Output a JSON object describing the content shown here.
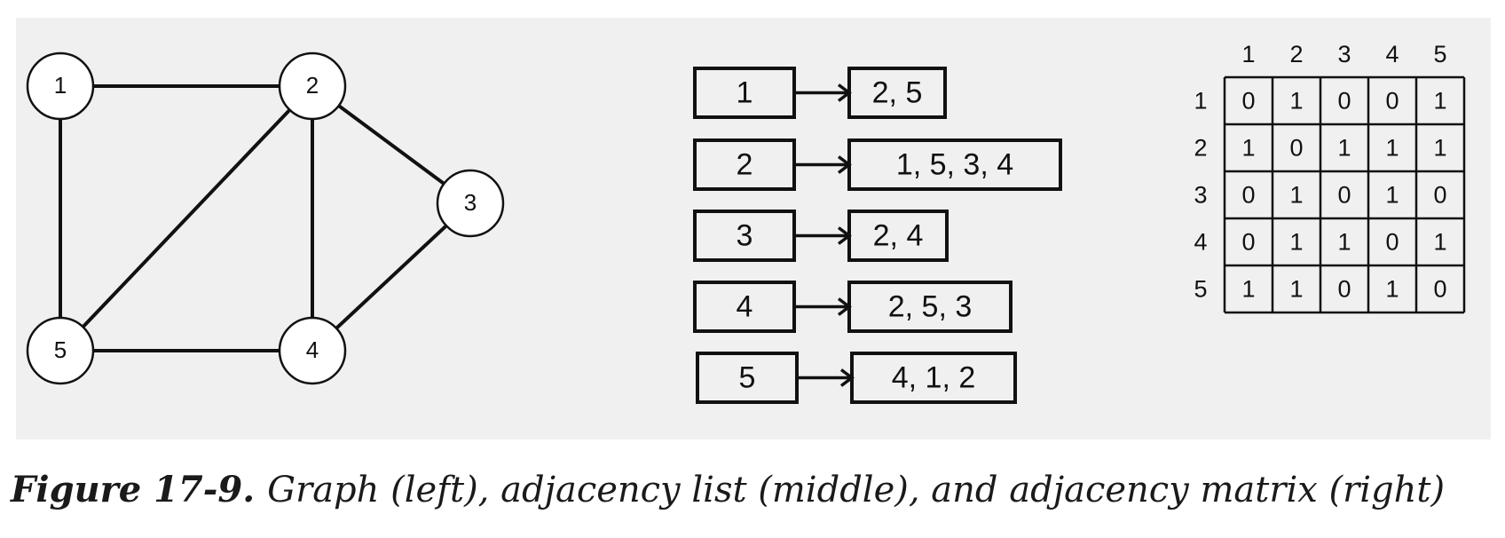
{
  "graph": {
    "nodes": [
      {
        "id": "1",
        "label": "1"
      },
      {
        "id": "2",
        "label": "2"
      },
      {
        "id": "3",
        "label": "3"
      },
      {
        "id": "4",
        "label": "4"
      },
      {
        "id": "5",
        "label": "5"
      }
    ],
    "edges": [
      [
        "1",
        "2"
      ],
      [
        "1",
        "5"
      ],
      [
        "2",
        "5"
      ],
      [
        "2",
        "4"
      ],
      [
        "2",
        "3"
      ],
      [
        "3",
        "4"
      ],
      [
        "4",
        "5"
      ]
    ]
  },
  "adjacency_list": [
    {
      "vertex": "1",
      "neighbors": "2, 5"
    },
    {
      "vertex": "2",
      "neighbors": "1, 5, 3, 4"
    },
    {
      "vertex": "3",
      "neighbors": "2, 4"
    },
    {
      "vertex": "4",
      "neighbors": "2, 5, 3"
    },
    {
      "vertex": "5",
      "neighbors": "4, 1, 2"
    }
  ],
  "adjacency_matrix": {
    "column_headers": [
      "1",
      "2",
      "3",
      "4",
      "5"
    ],
    "row_headers": [
      "1",
      "2",
      "3",
      "4",
      "5"
    ],
    "rows": [
      [
        "0",
        "1",
        "0",
        "0",
        "1"
      ],
      [
        "1",
        "0",
        "1",
        "1",
        "1"
      ],
      [
        "0",
        "1",
        "0",
        "1",
        "0"
      ],
      [
        "0",
        "1",
        "1",
        "0",
        "1"
      ],
      [
        "1",
        "1",
        "0",
        "1",
        "0"
      ]
    ]
  },
  "caption": {
    "label": "Figure 17-9.",
    "text": "Graph (left), adjacency list (middle), and adjacency matrix (right)"
  }
}
